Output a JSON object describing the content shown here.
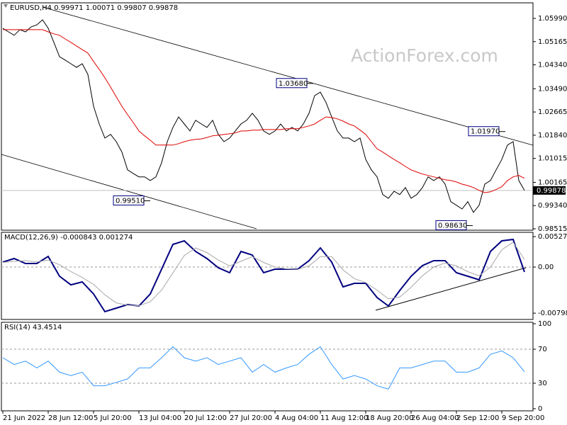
{
  "chart_data": [
    {
      "type": "line",
      "title": "EURUSD,H4  0.99971 1.00071 0.99807 0.99878",
      "watermark": "ActionForex.com",
      "categories": [
        "21 Jun 2022",
        null,
        null,
        null,
        null,
        null,
        null,
        null,
        "28 Jun 12:00",
        null,
        null,
        null,
        null,
        null,
        null,
        null,
        "5 Jul 20:00",
        null,
        null,
        null,
        null,
        null,
        null,
        null,
        "13 Jul 04:00",
        null,
        null,
        null,
        null,
        null,
        null,
        null,
        "20 Jul 12:00",
        null,
        null,
        null,
        null,
        null,
        null,
        null,
        "27 Jul 20:00",
        null,
        null,
        null,
        null,
        null,
        null,
        null,
        "4 Aug 04:00",
        null,
        null,
        null,
        null,
        null,
        null,
        null,
        "11 Aug 12:00",
        null,
        null,
        null,
        null,
        null,
        null,
        null,
        "18 Aug 20:00",
        null,
        null,
        null,
        null,
        null,
        null,
        null,
        "26 Aug 04:00",
        null,
        null,
        null,
        null,
        null,
        null,
        null,
        "2 Sep 12:00",
        null,
        null,
        null,
        null,
        null,
        null,
        null,
        "9 Sep 20:00",
        null,
        null,
        null,
        null
      ],
      "series": [
        {
          "color": "#000000",
          "values": [
            1.0564,
            1.0551,
            1.0539,
            1.0559,
            1.0551,
            1.0569,
            1.0576,
            1.0594,
            1.0564,
            1.0514,
            1.0463,
            1.0451,
            1.0438,
            1.0425,
            1.0438,
            1.04,
            1.0287,
            1.0224,
            1.0174,
            1.0187,
            1.0161,
            1.0124,
            1.0061,
            1.0048,
            1.0036,
            1.0036,
            1.0023,
            1.0036,
            1.0086,
            1.0161,
            1.0212,
            1.0249,
            1.0224,
            1.0199,
            1.0237,
            1.0224,
            1.0212,
            1.0237,
            1.0187,
            1.0161,
            1.0174,
            1.0199,
            1.0224,
            1.0237,
            1.0262,
            1.0237,
            1.0199,
            1.0187,
            1.0199,
            1.0224,
            1.0199,
            1.0212,
            1.0199,
            1.0224,
            1.0262,
            1.0325,
            1.0337,
            1.03,
            1.0249,
            1.0199,
            1.0174,
            1.0174,
            1.0161,
            1.0174,
            1.0098,
            1.0061,
            1.0036,
            0.9973,
            0.996,
            0.9985,
            0.9973,
            0.9998,
            0.996,
            0.9973,
            0.9998,
            1.0036,
            1.0023,
            1.0036,
            1.001,
            0.9948,
            0.9935,
            0.9922,
            0.9948,
            0.991,
            0.9935,
            1.001,
            1.0023,
            1.0061,
            1.0098,
            1.0149,
            1.0161,
            1.0023,
            0.9988
          ]
        },
        {
          "color": "#e00000",
          "values": [
            1.0559,
            1.0559,
            1.0559,
            1.0559,
            1.0559,
            1.0559,
            1.0559,
            1.0559,
            1.0551,
            1.0544,
            1.0539,
            1.0526,
            1.0514,
            1.0501,
            1.0488,
            1.0476,
            1.0446,
            1.0418,
            1.0388,
            1.0355,
            1.032,
            1.0287,
            1.0257,
            1.0229,
            1.0199,
            1.0182,
            1.0166,
            1.0149,
            1.0149,
            1.0149,
            1.0149,
            1.0154,
            1.0161,
            1.0166,
            1.0169,
            1.0171,
            1.0176,
            1.0182,
            1.0184,
            1.0187,
            1.0189,
            1.0192,
            1.0199,
            1.0199,
            1.0202,
            1.0202,
            1.0204,
            1.0204,
            1.0204,
            1.0204,
            1.0207,
            1.0207,
            1.0207,
            1.0212,
            1.0217,
            1.0224,
            1.0237,
            1.0249,
            1.0247,
            1.0242,
            1.0234,
            1.0224,
            1.0217,
            1.0202,
            1.0187,
            1.0161,
            1.0136,
            1.0124,
            1.0111,
            1.0098,
            1.0086,
            1.0073,
            1.0061,
            1.0053,
            1.0046,
            1.0041,
            1.0036,
            1.0031,
            1.0026,
            1.0023,
            1.0018,
            1.001,
            1.0005,
            0.9998,
            0.9988,
            0.998,
            0.9983,
            0.9991,
            1.0001,
            1.0023,
            1.0036,
            1.0041,
            1.0031
          ]
        }
      ],
      "last_price": 0.99878,
      "annotations": [
        {
          "value": 1.0368,
          "label": "1.03680"
        },
        {
          "value": 1.0197,
          "label": "1.01970"
        },
        {
          "value": 0.9951,
          "label": "0.99510"
        },
        {
          "value": 0.9863,
          "label": "0.98630"
        }
      ],
      "ylim": [
        0.98465,
        1.06543
      ],
      "yticks": [
        {
          "value": 1.0599,
          "label": "1.05990"
        },
        1.05165,
        {
          "value": 1.0434,
          "label": "1.04340"
        },
        {
          "value": 1.0349,
          "label": "1.03490"
        },
        1.02665,
        {
          "value": 1.0184,
          "label": "1.01840"
        },
        1.01015,
        1.00165,
        {
          "value": 0.9934,
          "label": "0.99340"
        },
        0.98515
      ],
      "grid": false
    },
    {
      "type": "line",
      "title": "MACD(12,26,9) -0.000843 0.001274",
      "series": [
        {
          "color": "#000080",
          "values": [
            0.00086,
            0.00147,
            0.00061,
            0.00061,
            0.00184,
            -0.00159,
            -0.00307,
            -0.00257,
            -0.00466,
            -0.00772,
            -0.00711,
            -0.0065,
            -0.00674,
            -0.00466,
            -0.00037,
            0.00392,
            0.00454,
            0.0027,
            0.00147,
            -0.00012,
            -0.00098,
            0.0027,
            0.00208,
            -0.00098,
            -0.00037,
            -0.00037,
            -0.00037,
            0.0011,
            0.00331,
            0.00086,
            -0.00343,
            -0.00282,
            -0.00282,
            -0.00527,
            -0.00674,
            -0.00405,
            -0.00159,
            0.00025,
            0.0011,
            0.0011,
            -0.00098,
            -0.00159,
            -0.00221,
            0.0027,
            0.00454,
            0.00478,
            -0.00084
          ]
        },
        {
          "color": "#a8a8a8",
          "values": [
            0.0008,
            0.001,
            0.0011,
            0.0009,
            0.0012,
            0.0004,
            -0.0008,
            -0.0018,
            -0.003,
            -0.0048,
            -0.0062,
            -0.0066,
            -0.0067,
            -0.006,
            -0.004,
            -0.001,
            0.002,
            0.0033,
            0.0025,
            0.0012,
            0.0002,
            0.001,
            0.0018,
            0.0008,
            0.0,
            -0.0003,
            -0.0004,
            0.0002,
            0.0018,
            0.0018,
            -0.0005,
            -0.002,
            -0.0027,
            -0.004,
            -0.0055,
            -0.0052,
            -0.0035,
            -0.0015,
            0.0,
            0.0007,
            0.0002,
            -0.0008,
            -0.0015,
            0.0,
            0.003,
            0.0043,
            0.0013
          ]
        }
      ],
      "ylim": [
        -0.00907,
        0.00601
      ],
      "yticks": [
        0.00527,
        {
          "value": 0,
          "label": "0.00"
        },
        -0.007984
      ],
      "grid": true
    },
    {
      "type": "line",
      "title": "RSI(14) 43.4514",
      "series": [
        {
          "color": "#3399ff",
          "values": [
            60,
            52,
            56,
            48,
            56,
            43,
            39,
            43,
            27,
            27,
            31,
            35,
            48,
            48,
            60,
            73,
            60,
            56,
            60,
            52,
            56,
            60,
            43,
            52,
            43,
            48,
            52,
            64,
            73,
            52,
            35,
            39,
            35,
            27,
            23,
            48,
            48,
            52,
            56,
            56,
            43,
            43,
            48,
            64,
            68,
            60,
            43.5
          ]
        }
      ],
      "ylim": [
        -2.5,
        101.7
      ],
      "yticks": [
        100,
        70,
        30,
        0
      ],
      "grid": true
    }
  ]
}
